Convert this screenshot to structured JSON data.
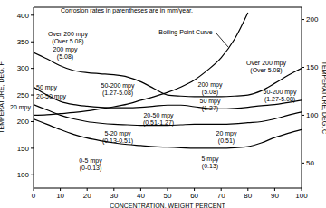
{
  "chart_data": {
    "type": "line",
    "x": [
      0,
      5,
      10,
      15,
      20,
      25,
      30,
      35,
      40,
      45,
      50,
      55,
      60,
      65,
      70,
      75,
      80,
      85,
      90,
      95,
      100
    ],
    "xlim": [
      0,
      100
    ],
    "xticks": [
      0,
      10,
      20,
      30,
      40,
      50,
      60,
      70,
      80,
      90,
      100
    ],
    "ylim": [
      75,
      415
    ],
    "yticks": [
      100,
      150,
      200,
      250,
      300,
      350,
      400
    ],
    "y2lim": [
      23.9,
      212.8
    ],
    "y2ticks": [
      50,
      100,
      150,
      200
    ],
    "x_label": "CONCENTRATION, WEIGHT PERCENT",
    "y_label": "TEMPERATURE, DEG. F",
    "y2_label": "TEMPERATURE, DEG. C",
    "grid": false,
    "series": [
      {
        "color": "#000000",
        "values": [
          330,
          318,
          305,
          296,
          292,
          290,
          288,
          284,
          275,
          262,
          250,
          248,
          247,
          247,
          247,
          248,
          250,
          258,
          272,
          287,
          300
        ]
      },
      {
        "color": "#000000",
        "values": [
          265,
          250,
          238,
          232,
          229,
          227,
          226,
          226,
          227,
          229,
          231,
          231,
          228,
          225,
          224,
          225,
          227,
          230,
          232,
          236,
          240
        ]
      },
      {
        "color": "#000000",
        "values": [
          232,
          222,
          212,
          205,
          200,
          197,
          195,
          194,
          193,
          193,
          193,
          194,
          195,
          195,
          195,
          196,
          198,
          200,
          205,
          212,
          218
        ]
      },
      {
        "color": "#000000",
        "values": [
          205,
          195,
          185,
          176,
          169,
          164,
          160,
          157,
          155,
          153,
          152,
          151,
          150,
          150,
          150,
          151,
          153,
          160,
          170,
          178,
          185
        ]
      },
      {
        "name": "Boiling Point Curve",
        "color": "#000000",
        "values": [
          212,
          213,
          215,
          217,
          220,
          224,
          228,
          233,
          240,
          247,
          255,
          265,
          278,
          297,
          320,
          355,
          405,
          null,
          null,
          null,
          null
        ]
      }
    ],
    "annotations": [
      [
        "Corrosion rates in parentheses are in mm/year."
      ],
      [
        "Over 200 mpy",
        "(Over 5.08)"
      ],
      [
        "200 mpy",
        "(5.08)"
      ],
      [
        "Over 200 mpy",
        "(Over 5.08)"
      ],
      [
        "50-200 mpy",
        "(1.27-5.08)"
      ],
      [
        "50 mpy"
      ],
      [
        "20-50 mpy"
      ],
      [
        "20 mpy"
      ],
      [
        "200 mpy",
        "(5.08)"
      ],
      [
        "50 mpy",
        "(1.27)"
      ],
      [
        "50-200 mpy",
        "(1.27-5.08)"
      ],
      [
        "20-50 mpy",
        "(0.51-1.27)"
      ],
      [
        "20 mpy",
        "(0.51)"
      ],
      [
        "5-20 mpy",
        "(0.13-0.51)"
      ],
      [
        "5 mpy",
        "(0.13)"
      ],
      [
        "0-5 mpy",
        "(0-0.13)"
      ]
    ]
  }
}
